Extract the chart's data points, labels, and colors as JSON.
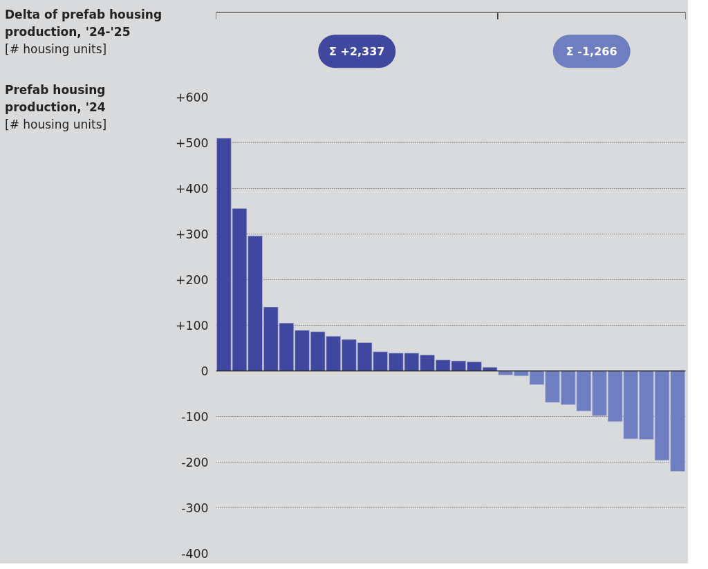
{
  "chart_data": {
    "type": "bar",
    "ylabel": "Delta of prefab housing production, '24-'25 [# housing units]",
    "annotations": [
      "Prefab housing production, '24 [# housing units]",
      "Σ +2,337",
      "Σ -1,266"
    ],
    "categories": [
      null,
      null,
      null,
      null,
      null,
      null,
      null,
      null,
      null,
      null,
      null,
      null,
      null,
      null,
      null,
      null,
      null,
      null,
      null,
      null,
      null,
      null,
      null,
      null,
      null,
      null,
      null,
      null,
      null,
      null
    ],
    "values": [
      510,
      356,
      296,
      140,
      105,
      89,
      86,
      76,
      69,
      62,
      42,
      39,
      39,
      35,
      24,
      22,
      20,
      8,
      -9,
      -11,
      -30,
      -69,
      -74,
      -88,
      -98,
      -111,
      -149,
      -150,
      -196,
      -220
    ],
    "colors": [
      "#3f479e",
      "#3f479e",
      "#3f479e",
      "#3f479e",
      "#3f479e",
      "#3f479e",
      "#3f479e",
      "#3f479e",
      "#3f479e",
      "#3f479e",
      "#3f479e",
      "#3f479e",
      "#3f479e",
      "#3f479e",
      "#3f479e",
      "#3f479e",
      "#3f479e",
      "#3f479e",
      "#6e7ec0",
      "#6e7ec0",
      "#6e7ec0",
      "#6e7ec0",
      "#6e7ec0",
      "#6e7ec0",
      "#6e7ec0",
      "#6e7ec0",
      "#6e7ec0",
      "#6e7ec0",
      "#6e7ec0",
      "#6e7ec0"
    ],
    "ylim": [
      -400,
      600
    ],
    "yticks": [
      {
        "value": 600,
        "label": "+600"
      },
      {
        "value": 500,
        "label": "+500"
      },
      {
        "value": 400,
        "label": "+400"
      },
      {
        "value": 300,
        "label": "+300"
      },
      {
        "value": 200,
        "label": "+200"
      },
      {
        "value": 100,
        "label": "+100"
      },
      0,
      {
        "value": -100,
        "label": "-100"
      },
      {
        "value": -200,
        "label": "-200"
      },
      {
        "value": -300,
        "label": "-300"
      },
      {
        "value": -400,
        "label": "-400"
      }
    ],
    "grid": "y"
  }
}
